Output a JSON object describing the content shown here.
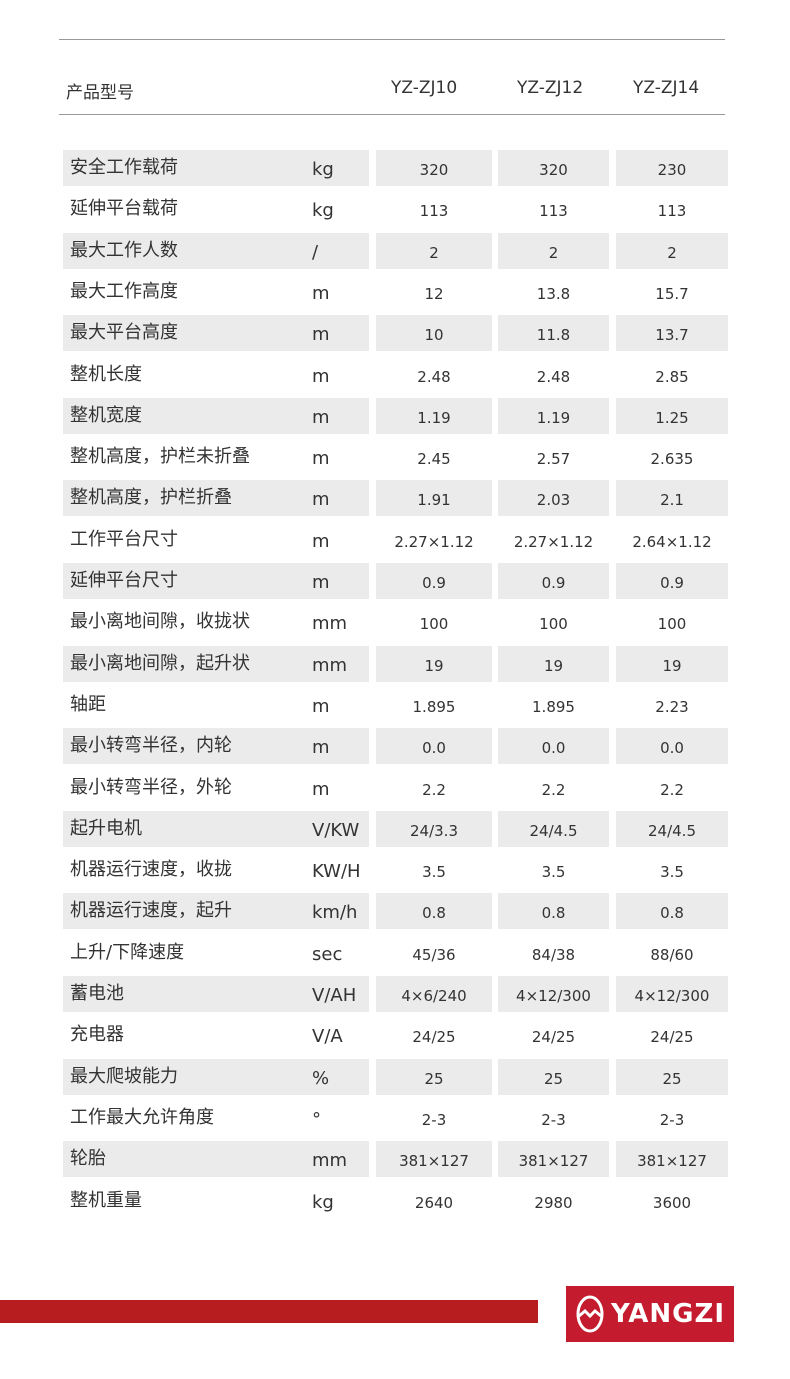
{
  "header": {
    "label": "产品型号",
    "models": [
      "YZ-ZJ10",
      "YZ-ZJ12",
      "YZ-ZJ14"
    ]
  },
  "rows": [
    {
      "label": "安全工作载荷",
      "unit": "kg",
      "values": [
        "320",
        "320",
        "230"
      ]
    },
    {
      "label": "延伸平台载荷",
      "unit": "kg",
      "values": [
        "113",
        "113",
        "113"
      ]
    },
    {
      "label": "最大工作人数",
      "unit": "/",
      "values": [
        "2",
        "2",
        "2"
      ]
    },
    {
      "label": "最大工作高度",
      "unit": "m",
      "values": [
        "12",
        "13.8",
        "15.7"
      ]
    },
    {
      "label": "最大平台高度",
      "unit": "m",
      "values": [
        "10",
        "11.8",
        "13.7"
      ]
    },
    {
      "label": "整机长度",
      "unit": "m",
      "values": [
        "2.48",
        "2.48",
        "2.85"
      ]
    },
    {
      "label": "整机宽度",
      "unit": "m",
      "values": [
        "1.19",
        "1.19",
        "1.25"
      ]
    },
    {
      "label": "整机高度，护栏未折叠",
      "unit": "m",
      "values": [
        "2.45",
        "2.57",
        "2.635"
      ]
    },
    {
      "label": "整机高度，护栏折叠",
      "unit": "m",
      "values": [
        "1.91",
        "2.03",
        "2.1"
      ]
    },
    {
      "label": "工作平台尺寸",
      "unit": "m",
      "values": [
        "2.27×1.12",
        "2.27×1.12",
        "2.64×1.12"
      ]
    },
    {
      "label": "延伸平台尺寸",
      "unit": "m",
      "values": [
        "0.9",
        "0.9",
        "0.9"
      ]
    },
    {
      "label": "最小离地间隙，收拢状",
      "unit": "mm",
      "values": [
        "100",
        "100",
        "100"
      ]
    },
    {
      "label": "最小离地间隙，起升状",
      "unit": "mm",
      "values": [
        "19",
        "19",
        "19"
      ]
    },
    {
      "label": "轴距",
      "unit": "m",
      "values": [
        "1.895",
        "1.895",
        "2.23"
      ]
    },
    {
      "label": "最小转弯半径，内轮",
      "unit": "m",
      "values": [
        "0.0",
        "0.0",
        "0.0"
      ]
    },
    {
      "label": "最小转弯半径，外轮",
      "unit": "m",
      "values": [
        "2.2",
        "2.2",
        "2.2"
      ]
    },
    {
      "label": "起升电机",
      "unit": "V/KW",
      "values": [
        "24/3.3",
        "24/4.5",
        "24/4.5"
      ]
    },
    {
      "label": "机器运行速度，收拢",
      "unit": "KW/H",
      "values": [
        "3.5",
        "3.5",
        "3.5"
      ]
    },
    {
      "label": "机器运行速度，起升",
      "unit": "km/h",
      "values": [
        "0.8",
        "0.8",
        "0.8"
      ]
    },
    {
      "label": "上升/下降速度",
      "unit": "sec",
      "values": [
        "45/36",
        "84/38",
        "88/60"
      ]
    },
    {
      "label": "蓄电池",
      "unit": "V/AH",
      "values": [
        "4×6/240",
        "4×12/300",
        "4×12/300"
      ]
    },
    {
      "label": "充电器",
      "unit": "V/A",
      "values": [
        "24/25",
        "24/25",
        "24/25"
      ]
    },
    {
      "label": "最大爬坡能力",
      "unit": "%",
      "values": [
        "25",
        "25",
        "25"
      ]
    },
    {
      "label": "工作最大允许角度",
      "unit": "°",
      "values": [
        "2-3",
        "2-3",
        "2-3"
      ]
    },
    {
      "label": "轮胎",
      "unit": "mm",
      "values": [
        "381×127",
        "381×127",
        "381×127"
      ]
    },
    {
      "label": "整机重量",
      "unit": "kg",
      "values": [
        "2640",
        "2980",
        "3600"
      ]
    }
  ],
  "footer": {
    "brand": "YANGZI",
    "brand_color": "#c41c2e",
    "bar_color": "#b71c1e"
  }
}
